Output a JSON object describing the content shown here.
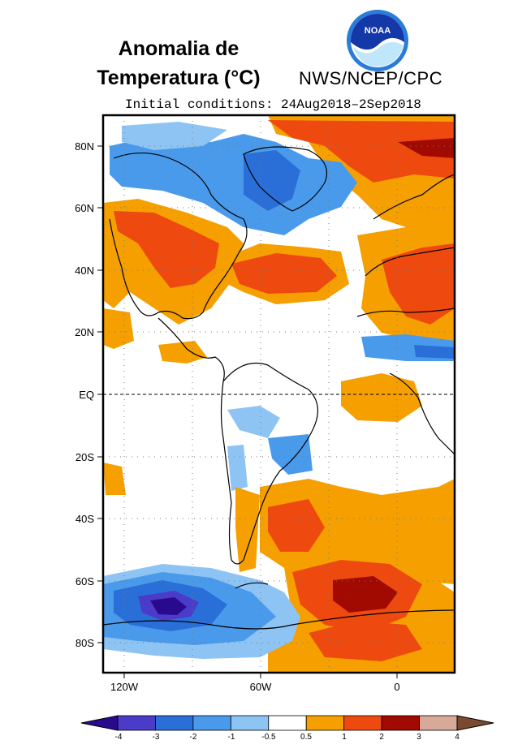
{
  "title_line1": "Anomalia de",
  "title_line2": "Temperatura (°C)",
  "agency": "NWS/NCEP/CPC",
  "logo_text": "NOAA",
  "subtitle": "Initial conditions: 24Aug2018–2Sep2018",
  "lat_labels": [
    "80N",
    "60N",
    "40N",
    "20N",
    "EQ",
    "20S",
    "40S",
    "60S",
    "80S"
  ],
  "lon_labels": [
    "120W",
    "60W",
    "0"
  ],
  "colorbar": {
    "ticks": [
      "-4",
      "-3",
      "-2",
      "-1",
      "-0.5",
      "0.5",
      "1",
      "2",
      "3",
      "4"
    ],
    "colors": [
      "#2a0a8c",
      "#4a3cc8",
      "#2a6fd8",
      "#4a9aec",
      "#8ec4f4",
      "#ffffff",
      "#f5a000",
      "#ee4a10",
      "#a00a00",
      "#d8a898",
      "#7a4a30"
    ]
  }
}
